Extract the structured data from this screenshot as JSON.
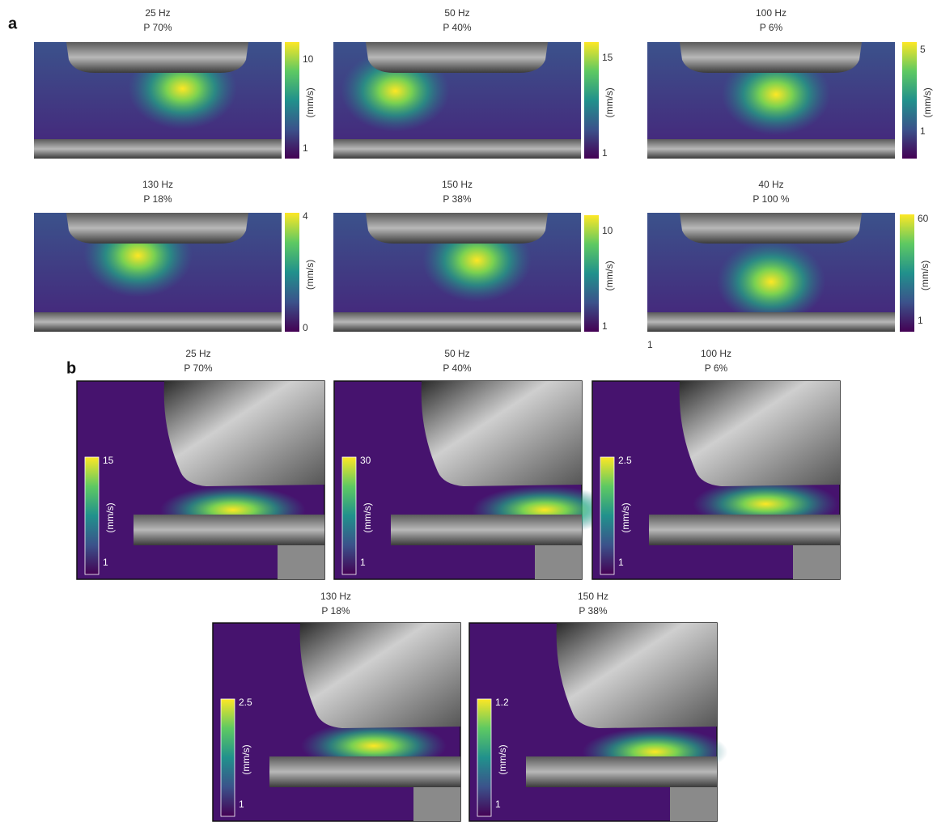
{
  "figure": {
    "panels": [
      {
        "label": "a",
        "items": [
          {
            "title": [
              "25 Hz",
              "P 70%"
            ],
            "colorbar": {
              "unit": "(mm/s)",
              "ticks": [
                10,
                1
              ]
            }
          },
          {
            "title": [
              "50 Hz",
              "P 40%"
            ],
            "colorbar": {
              "unit": "(mm/s)",
              "ticks": [
                15,
                1
              ]
            }
          },
          {
            "title": [
              "100 Hz",
              "P 6%"
            ],
            "colorbar": {
              "unit": "(mm/s)",
              "ticks": [
                5,
                1
              ]
            }
          },
          {
            "title": [
              "130 Hz",
              "P 18%"
            ],
            "colorbar": {
              "unit": "(mm/s)",
              "ticks": [
                4,
                0
              ]
            }
          },
          {
            "title": [
              "150 Hz",
              "P 38%"
            ],
            "colorbar": {
              "unit": "(mm/s)",
              "ticks": [
                10,
                1
              ]
            }
          },
          {
            "title": [
              "40 Hz",
              "P 100 %"
            ],
            "colorbar": {
              "unit": "(mm/s)",
              "ticks": [
                60,
                1
              ]
            }
          }
        ]
      },
      {
        "label": "b",
        "items": [
          {
            "title": [
              "25 Hz",
              "P 70%"
            ],
            "colorbar": {
              "unit": "(mm/s)",
              "ticks": [
                15,
                1
              ]
            }
          },
          {
            "title": [
              "50 Hz",
              "P 40%"
            ],
            "colorbar": {
              "unit": "(mm/s)",
              "ticks": [
                30,
                1
              ]
            }
          },
          {
            "title": [
              "100 Hz",
              "P 6%"
            ],
            "colorbar": {
              "unit": "(mm/s)",
              "ticks": [
                2.5,
                1
              ]
            }
          },
          {
            "title": [
              "130 Hz",
              "P 18%"
            ],
            "colorbar": {
              "unit": "(mm/s)",
              "ticks": [
                2.5,
                1
              ]
            }
          },
          {
            "title": [
              "150 Hz",
              "P 38%"
            ],
            "colorbar": {
              "unit": "(mm/s)",
              "ticks": [
                1.2,
                1
              ]
            }
          }
        ]
      }
    ],
    "stray_label": 1
  }
}
